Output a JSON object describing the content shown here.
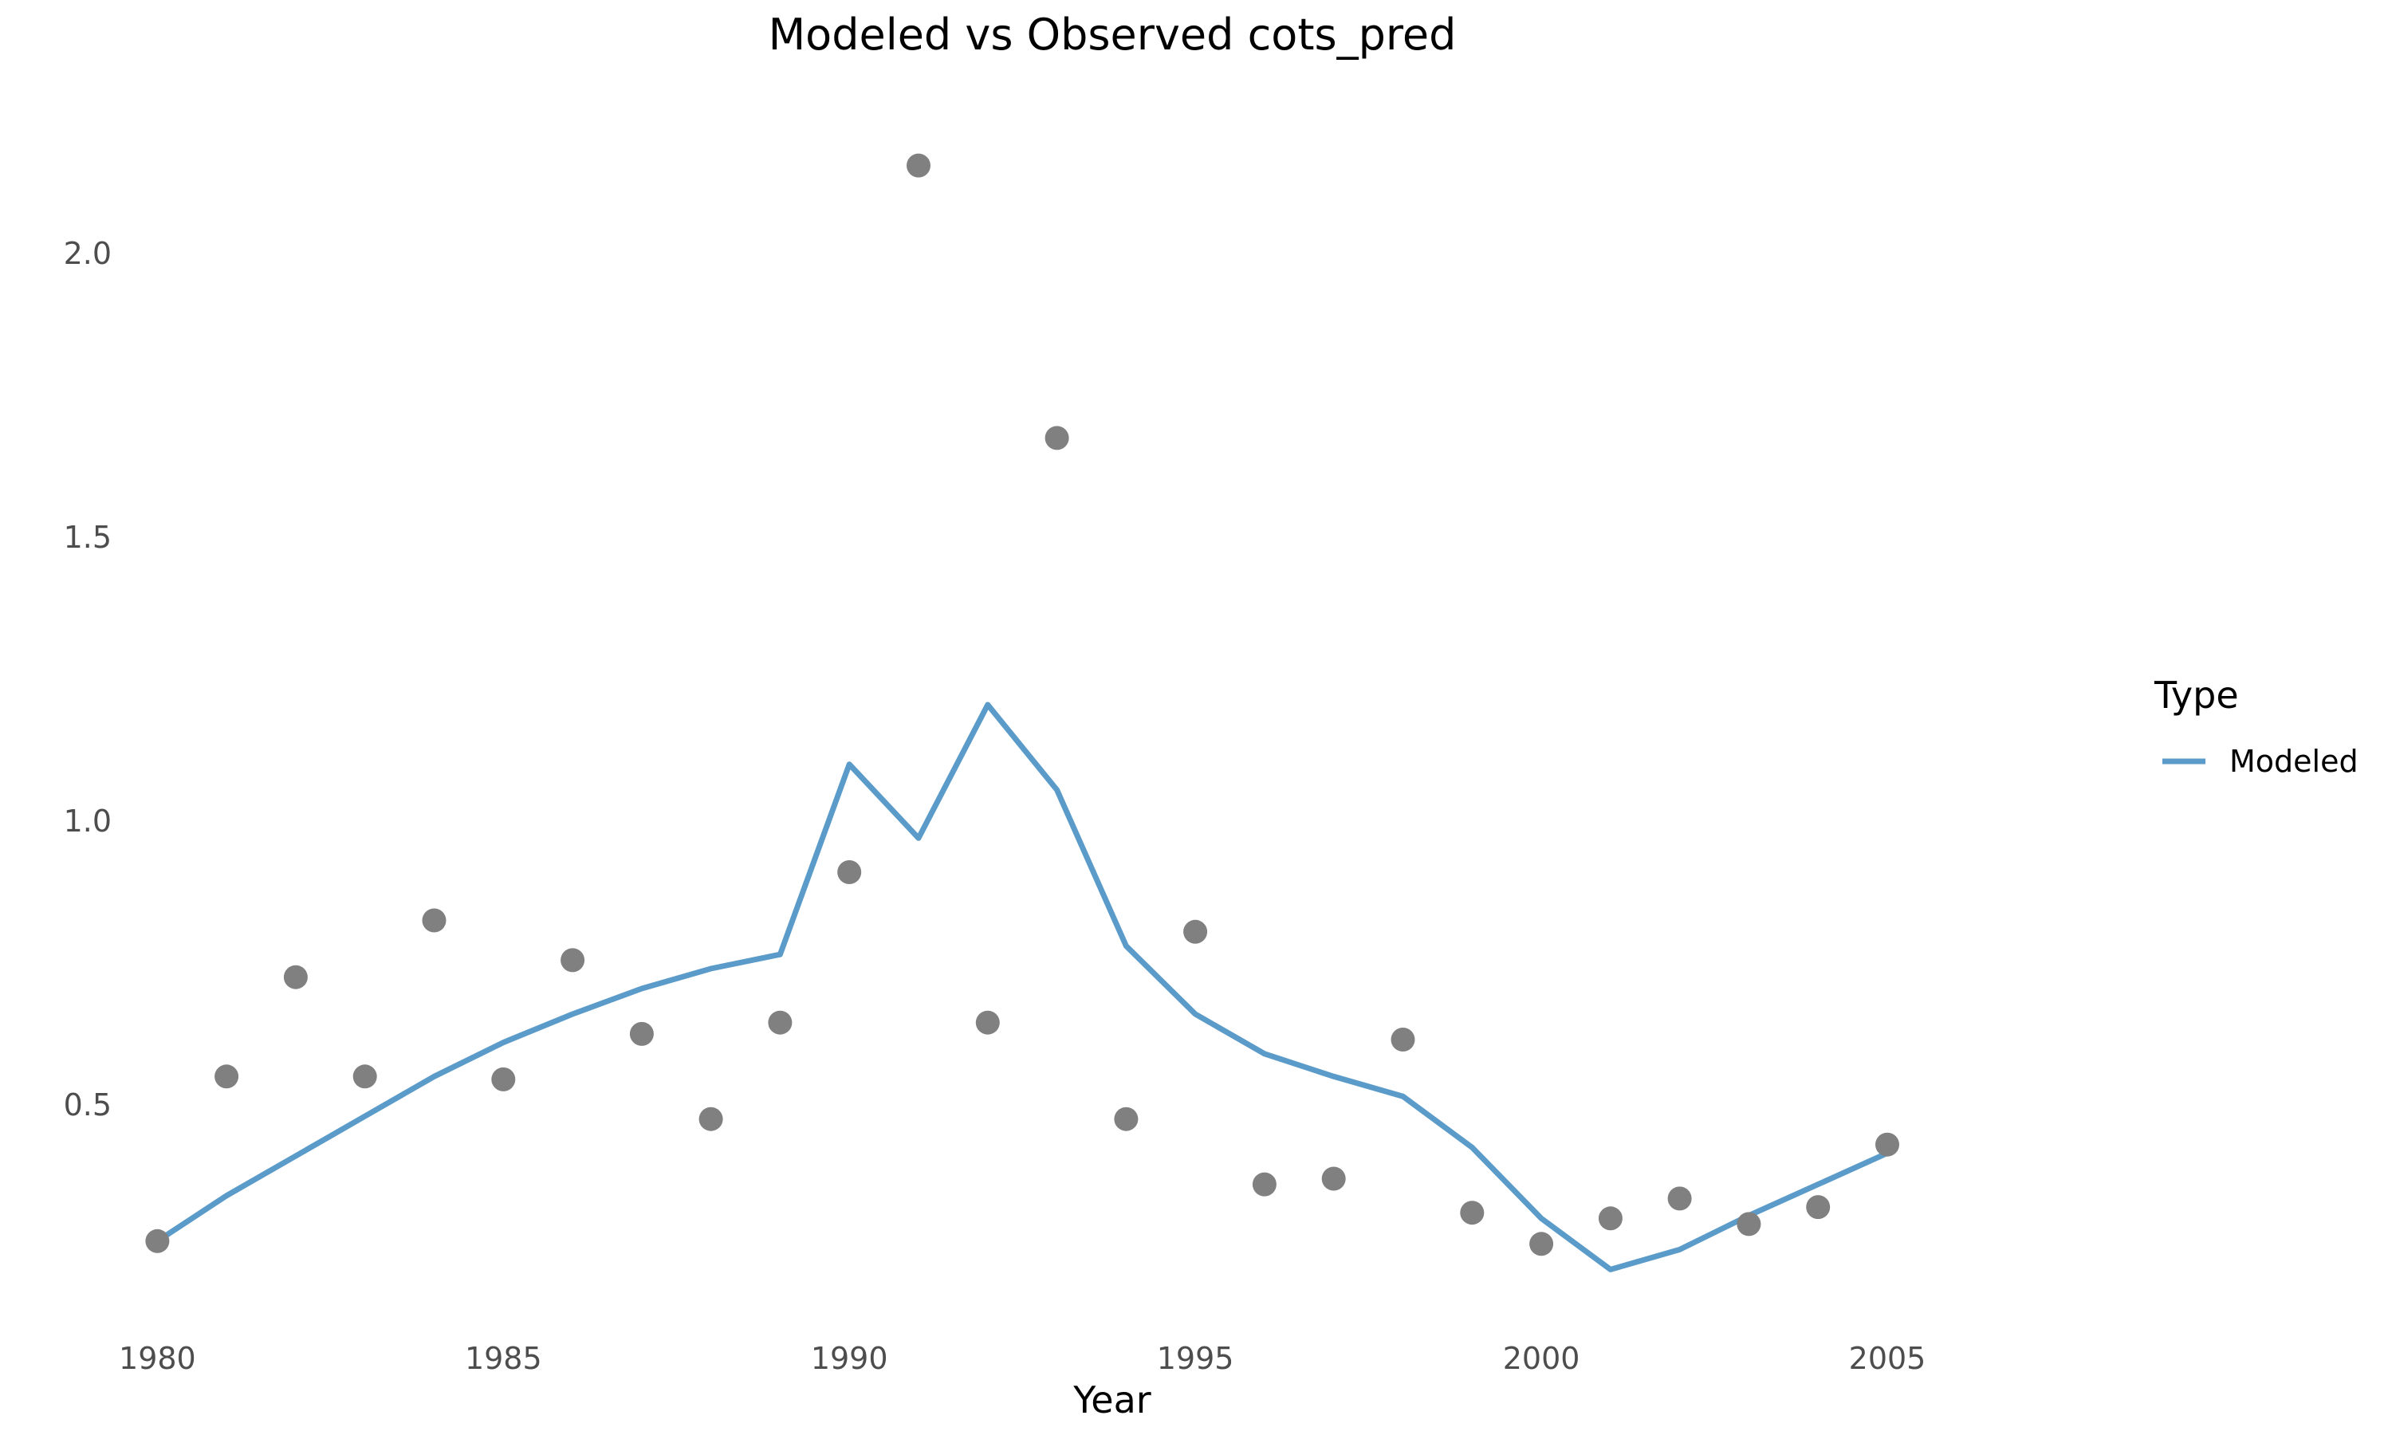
{
  "chart_data": {
    "type": "line",
    "title": "Modeled vs Observed cots_pred",
    "xlabel": "Year",
    "ylabel": "",
    "xlim": [
      1979.8,
      2007.8
    ],
    "ylim": [
      0.115,
      2.25
    ],
    "x_ticks": [
      1980,
      1985,
      1990,
      1995,
      2000,
      2005
    ],
    "y_ticks": [
      0.5,
      1.0,
      1.5,
      2.0
    ],
    "y_tick_labels": [
      "0.5",
      "1.0",
      "1.5",
      "2.0"
    ],
    "grid": false,
    "legend": {
      "title": "Type",
      "position": "right",
      "entries": [
        "Modeled"
      ]
    },
    "colors": {
      "modeled": "#5b9bc9",
      "observed": "#808080"
    },
    "series": [
      {
        "name": "Modeled",
        "style": "line",
        "x": [
          1980,
          1981,
          1982,
          1983,
          1984,
          1985,
          1986,
          1987,
          1988,
          1989,
          1990,
          1991,
          1992,
          1993,
          1994,
          1995,
          1996,
          1997,
          1998,
          1999,
          2000,
          2001,
          2002,
          2003,
          2004,
          2005
        ],
        "values": [
          0.26,
          0.34,
          0.41,
          0.48,
          0.55,
          0.61,
          0.66,
          0.705,
          0.74,
          0.765,
          1.1,
          0.97,
          1.205,
          1.055,
          0.78,
          0.66,
          0.59,
          0.55,
          0.515,
          0.425,
          0.3,
          0.21,
          0.245,
          0.305,
          0.36,
          0.415
        ]
      },
      {
        "style": "points",
        "x": [
          1980,
          1981,
          1982,
          1983,
          1984,
          1985,
          1986,
          1987,
          1988,
          1989,
          1990,
          1991,
          1992,
          1993,
          1994,
          1995,
          1996,
          1997,
          1998,
          1999,
          2000,
          2001,
          2002,
          2003,
          2004,
          2005
        ],
        "values": [
          0.26,
          0.55,
          0.725,
          0.55,
          0.825,
          0.545,
          0.755,
          0.625,
          0.475,
          0.645,
          0.91,
          2.155,
          0.645,
          1.675,
          0.475,
          0.805,
          0.36,
          0.37,
          0.615,
          0.31,
          0.255,
          0.3,
          0.335,
          0.29,
          0.32,
          0.43
        ]
      }
    ]
  }
}
